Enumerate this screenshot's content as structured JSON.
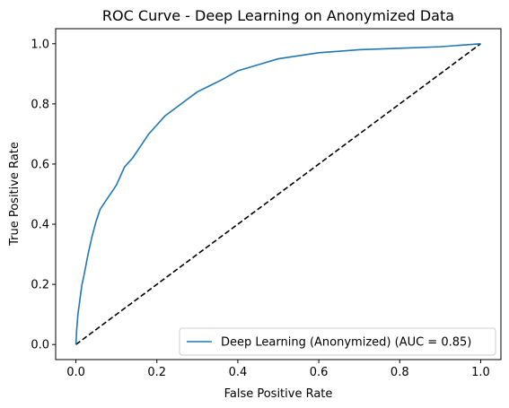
{
  "chart_data": {
    "type": "line",
    "title": "ROC Curve - Deep Learning on Anonymized Data",
    "xlabel": "False Positive Rate",
    "ylabel": "True Positive Rate",
    "xlim": [
      -0.05,
      1.05
    ],
    "ylim": [
      -0.05,
      1.05
    ],
    "x_ticks": [
      0.0,
      0.2,
      0.4,
      0.6,
      0.8,
      1.0
    ],
    "y_ticks": [
      0.0,
      0.2,
      0.4,
      0.6,
      0.8,
      1.0
    ],
    "x_tick_labels": [
      "0.0",
      "0.2",
      "0.4",
      "0.6",
      "0.8",
      "1.0"
    ],
    "y_tick_labels": [
      "0.0",
      "0.2",
      "0.4",
      "0.6",
      "0.8",
      "1.0"
    ],
    "grid": false,
    "legend_position": "lower-right",
    "series": [
      {
        "name": "Deep Learning (Anonymized) (AUC = 0.85)",
        "color": "#1f77b4",
        "style": "solid",
        "x": [
          0.0,
          0.002,
          0.005,
          0.01,
          0.015,
          0.02,
          0.03,
          0.04,
          0.05,
          0.06,
          0.07,
          0.08,
          0.09,
          0.1,
          0.12,
          0.14,
          0.16,
          0.18,
          0.2,
          0.22,
          0.25,
          0.28,
          0.3,
          0.33,
          0.36,
          0.4,
          0.45,
          0.5,
          0.55,
          0.6,
          0.65,
          0.7,
          0.8,
          0.9,
          1.0
        ],
        "y": [
          0.0,
          0.05,
          0.1,
          0.15,
          0.2,
          0.23,
          0.3,
          0.36,
          0.41,
          0.45,
          0.47,
          0.49,
          0.51,
          0.53,
          0.59,
          0.62,
          0.66,
          0.7,
          0.73,
          0.76,
          0.79,
          0.82,
          0.84,
          0.86,
          0.88,
          0.91,
          0.93,
          0.95,
          0.96,
          0.97,
          0.975,
          0.98,
          0.985,
          0.99,
          1.0
        ]
      },
      {
        "name": "",
        "color": "#000000",
        "style": "dashed",
        "x": [
          0.0,
          1.0
        ],
        "y": [
          0.0,
          1.0
        ]
      }
    ]
  }
}
